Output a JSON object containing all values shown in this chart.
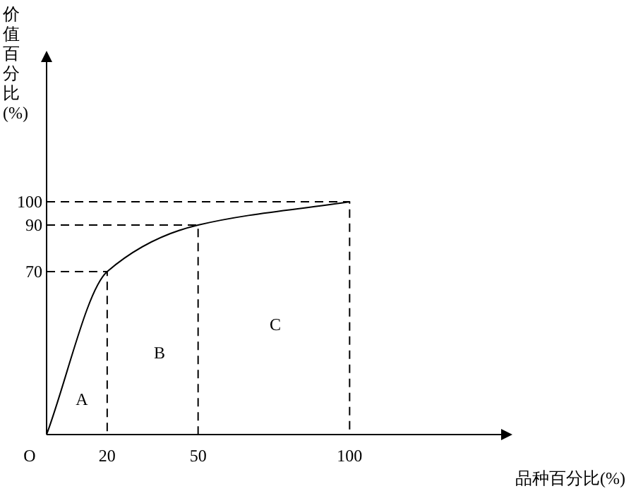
{
  "chart_data": {
    "type": "line",
    "xlabel": "品种百分比(%)",
    "ylabel": "价值百分比(%)",
    "xlim": [
      0,
      150
    ],
    "ylim": [
      0,
      160
    ],
    "xticks": [
      20,
      50,
      100
    ],
    "yticks": [
      70,
      90,
      100
    ],
    "marker": "none",
    "series": [
      {
        "color": "#000000",
        "line_style": "solid",
        "x": [
          0,
          20,
          50,
          100
        ],
        "values": [
          0,
          70,
          90,
          100
        ]
      },
      {
        "color": "#000000",
        "line_style": "dashed",
        "x": [
          0,
          20,
          20
        ],
        "values": [
          70,
          70,
          0
        ]
      },
      {
        "color": "#000000",
        "line_style": "dashed",
        "x": [
          0,
          50,
          50
        ],
        "values": [
          90,
          90,
          0
        ]
      },
      {
        "color": "#000000",
        "line_style": "dashed",
        "x": [
          0,
          100,
          100
        ],
        "values": [
          100,
          100,
          0
        ]
      }
    ],
    "annotations": [
      "A",
      "B",
      "C",
      "O"
    ]
  }
}
